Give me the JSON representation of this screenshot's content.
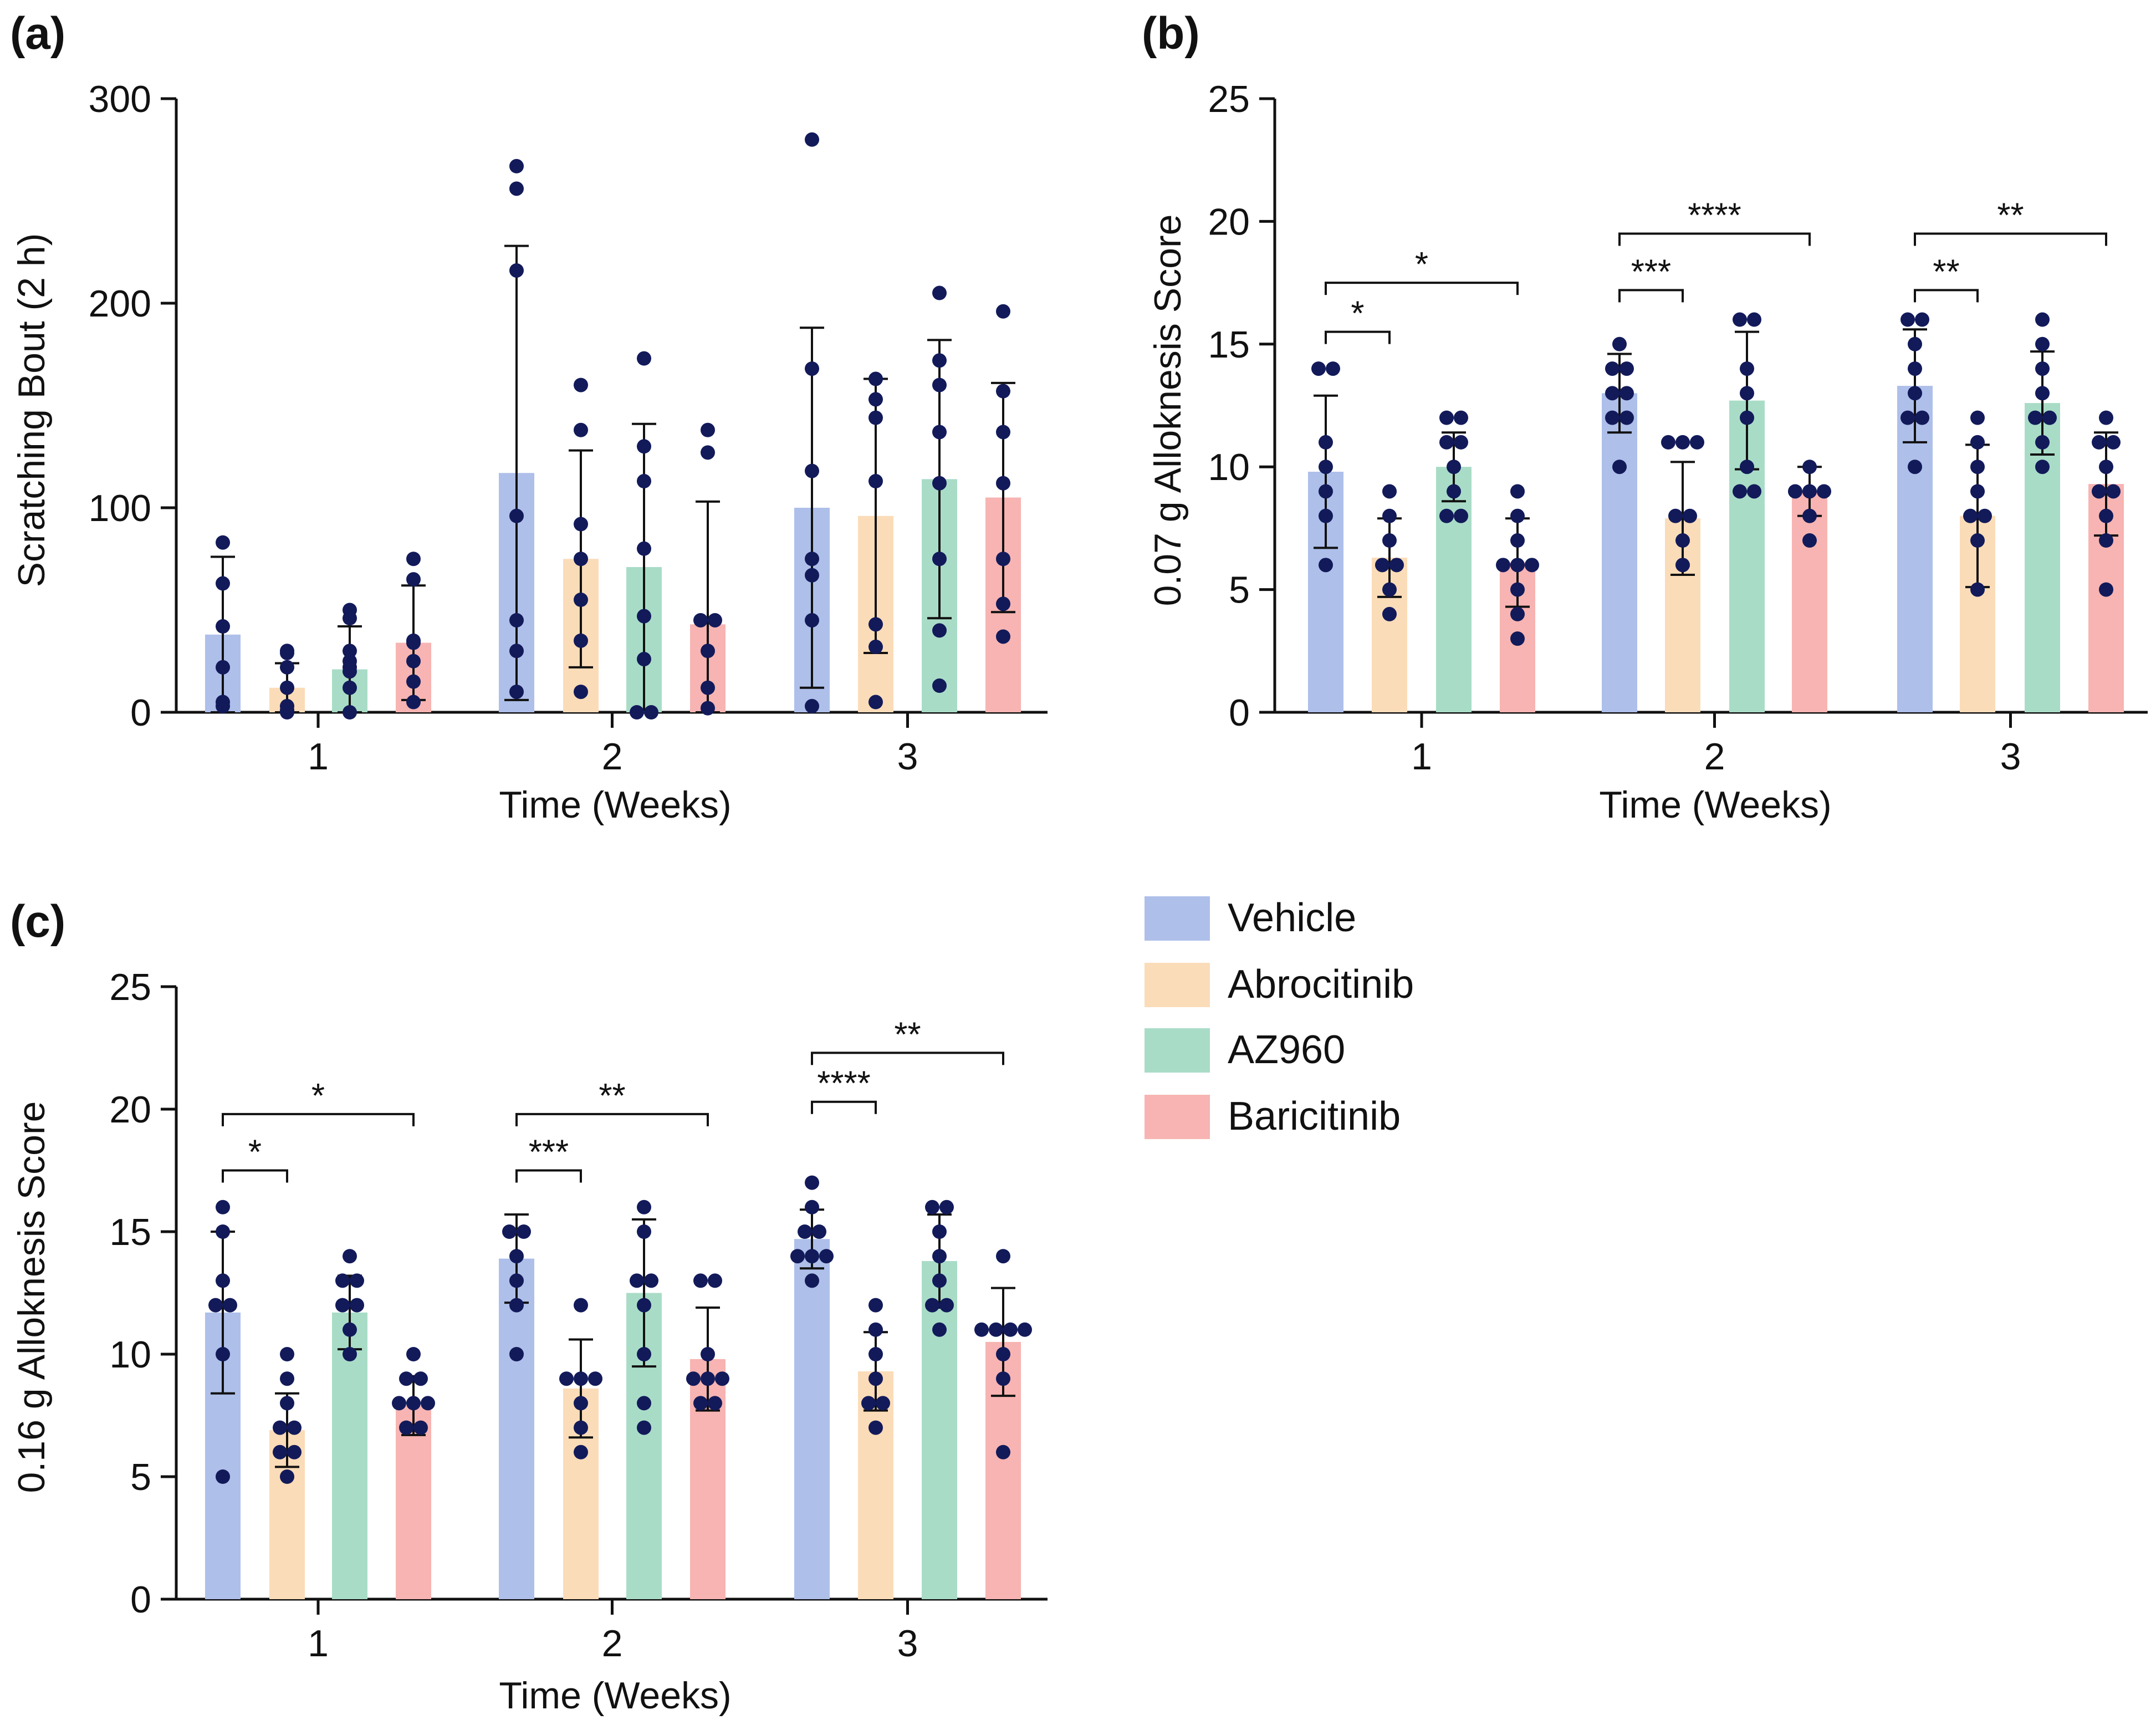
{
  "colors": {
    "vehicle": "#aebfea",
    "abrocitinib": "#fbdcb8",
    "az960": "#a9dcc7",
    "baricitinib": "#f7b4b2",
    "dot": "#121a5a",
    "axis": "#111111"
  },
  "legend": {
    "items": [
      {
        "label": "Vehicle",
        "color": "#aebfea"
      },
      {
        "label": "Abrocitinib",
        "color": "#fbdcb8"
      },
      {
        "label": "AZ960",
        "color": "#a9dcc7"
      },
      {
        "label": "Baricitinib",
        "color": "#f7b4b2"
      }
    ]
  },
  "chart_data": [
    {
      "panel_label": "(a)",
      "type": "bar",
      "title": "",
      "xlabel": "Time (Weeks)",
      "ylabel": "Scratching Bout (2 h)",
      "categories": [
        "1",
        "2",
        "3"
      ],
      "ylim": [
        0,
        300
      ],
      "yticks": [
        "0",
        "100",
        "200",
        "300"
      ],
      "series": [
        {
          "name": "Vehicle",
          "values": [
            38,
            117,
            100
          ],
          "sd": [
            38,
            111,
            88
          ],
          "points": [
            [
              83,
              63,
              42,
              22,
              5,
              3
            ],
            [
              267,
              256,
              216,
              96,
              45,
              30,
              10
            ],
            [
              280,
              168,
              118,
              75,
              67,
              45,
              3
            ]
          ]
        },
        {
          "name": "Abrocitinib",
          "values": [
            12,
            75,
            96
          ],
          "sd": [
            12,
            53,
            67
          ],
          "points": [
            [
              30,
              29,
              22,
              12,
              3,
              1,
              0
            ],
            [
              160,
              138,
              92,
              75,
              55,
              35,
              10
            ],
            [
              163,
              153,
              144,
              113,
              43,
              32,
              5
            ]
          ]
        },
        {
          "name": "AZ960",
          "values": [
            21,
            71,
            114
          ],
          "sd": [
            21,
            70,
            68
          ],
          "points": [
            [
              50,
              46,
              30,
              25,
              22,
              20,
              12,
              0
            ],
            [
              173,
              130,
              113,
              80,
              47,
              26,
              0,
              0
            ],
            [
              205,
              172,
              160,
              137,
              112,
              75,
              40,
              13
            ]
          ]
        },
        {
          "name": "Baricitinib",
          "values": [
            34,
            43,
            105
          ],
          "sd": [
            28,
            60,
            56
          ],
          "points": [
            [
              75,
              65,
              35,
              34,
              25,
              15,
              5
            ],
            [
              138,
              127,
              45,
              45,
              30,
              12,
              2
            ],
            [
              196,
              157,
              137,
              112,
              75,
              53,
              37
            ]
          ]
        }
      ],
      "annotations": []
    },
    {
      "panel_label": "(b)",
      "type": "bar",
      "title": "",
      "xlabel": "Time (Weeks)",
      "ylabel": "0.07 g Alloknesis Score",
      "categories": [
        "1",
        "2",
        "3"
      ],
      "ylim": [
        0,
        25
      ],
      "yticks": [
        "0",
        "5",
        "10",
        "15",
        "20",
        "25"
      ],
      "series": [
        {
          "name": "Vehicle",
          "values": [
            9.8,
            13,
            13.3
          ],
          "sd": [
            3.1,
            1.6,
            2.3
          ],
          "points": [
            [
              14,
              14,
              11,
              10,
              9,
              8,
              6
            ],
            [
              15,
              14,
              14,
              13,
              13,
              12,
              12,
              10
            ],
            [
              16,
              16,
              15,
              14,
              13,
              12,
              12,
              10
            ]
          ]
        },
        {
          "name": "Abrocitinib",
          "values": [
            6.3,
            7.9,
            8
          ],
          "sd": [
            1.6,
            2.3,
            2.9
          ],
          "points": [
            [
              9,
              8,
              7,
              6,
              6,
              5,
              4
            ],
            [
              11,
              11,
              11,
              8,
              8,
              7,
              6
            ],
            [
              12,
              11,
              10,
              9,
              8,
              8,
              7,
              5
            ]
          ]
        },
        {
          "name": "AZ960",
          "values": [
            10,
            12.7,
            12.6
          ],
          "sd": [
            1.4,
            2.8,
            2.1
          ],
          "points": [
            [
              12,
              12,
              11,
              11,
              10,
              9,
              8,
              8
            ],
            [
              16,
              16,
              14,
              13,
              12,
              10,
              9,
              9
            ],
            [
              16,
              15,
              14,
              13,
              12,
              12,
              11,
              10
            ]
          ]
        },
        {
          "name": "Baricitinib",
          "values": [
            6.1,
            9,
            9.3
          ],
          "sd": [
            1.8,
            1.0,
            2.1
          ],
          "points": [
            [
              9,
              8,
              7,
              6,
              6,
              6,
              5,
              4,
              3
            ],
            [
              10,
              9,
              9,
              9,
              8,
              7
            ],
            [
              12,
              11,
              11,
              10,
              9,
              9,
              8,
              7,
              5
            ]
          ]
        }
      ],
      "annotations": [
        {
          "week": "1",
          "from": "Vehicle",
          "to": "Abrocitinib",
          "level": 15.5,
          "text": "*"
        },
        {
          "week": "1",
          "from": "Vehicle",
          "to": "Baricitinib",
          "level": 17.5,
          "text": "*"
        },
        {
          "week": "2",
          "from": "Vehicle",
          "to": "Abrocitinib",
          "level": 17.2,
          "text": "***"
        },
        {
          "week": "2",
          "from": "Vehicle",
          "to": "Baricitinib",
          "level": 19.5,
          "text": "****"
        },
        {
          "week": "3",
          "from": "Vehicle",
          "to": "Abrocitinib",
          "level": 17.2,
          "text": "**"
        },
        {
          "week": "3",
          "from": "Vehicle",
          "to": "Baricitinib",
          "level": 19.5,
          "text": "**"
        }
      ]
    },
    {
      "panel_label": "(c)",
      "type": "bar",
      "title": "",
      "xlabel": "Time (Weeks)",
      "ylabel": "0.16 g Alloknesis Score",
      "categories": [
        "1",
        "2",
        "3"
      ],
      "ylim": [
        0,
        25
      ],
      "yticks": [
        "0",
        "5",
        "10",
        "15",
        "20",
        "25"
      ],
      "series": [
        {
          "name": "Vehicle",
          "values": [
            11.7,
            13.9,
            14.7
          ],
          "sd": [
            3.3,
            1.8,
            1.2
          ],
          "points": [
            [
              16,
              15,
              13,
              12,
              12,
              10,
              5
            ],
            [
              15,
              15,
              14,
              13,
              12,
              10
            ],
            [
              17,
              16,
              15,
              15,
              14,
              14,
              14,
              13
            ]
          ]
        },
        {
          "name": "Abrocitinib",
          "values": [
            6.9,
            8.6,
            9.3
          ],
          "sd": [
            1.5,
            2.0,
            1.6
          ],
          "points": [
            [
              10,
              9,
              8,
              7,
              7,
              6,
              6,
              5
            ],
            [
              12,
              9,
              9,
              9,
              8,
              7,
              6
            ],
            [
              12,
              11,
              10,
              9,
              8,
              8,
              7
            ]
          ]
        },
        {
          "name": "AZ960",
          "values": [
            11.7,
            12.5,
            13.8
          ],
          "sd": [
            1.5,
            3.0,
            1.9
          ],
          "points": [
            [
              14,
              13,
              13,
              12,
              12,
              11,
              10
            ],
            [
              16,
              15,
              13,
              13,
              12,
              10,
              8,
              7
            ],
            [
              16,
              16,
              15,
              14,
              13,
              12,
              12,
              11
            ]
          ]
        },
        {
          "name": "Baricitinib",
          "values": [
            7.9,
            9.8,
            10.5
          ],
          "sd": [
            1.2,
            2.1,
            2.2
          ],
          "points": [
            [
              10,
              9,
              9,
              8,
              8,
              8,
              7,
              7
            ],
            [
              13,
              13,
              10,
              9,
              9,
              9,
              8,
              8
            ],
            [
              14,
              11,
              11,
              11,
              11,
              10,
              9,
              6
            ]
          ]
        }
      ],
      "annotations": [
        {
          "week": "1",
          "from": "Vehicle",
          "to": "Abrocitinib",
          "level": 17.5,
          "text": "*"
        },
        {
          "week": "1",
          "from": "Vehicle",
          "to": "Baricitinib",
          "level": 19.8,
          "text": "*"
        },
        {
          "week": "2",
          "from": "Vehicle",
          "to": "Abrocitinib",
          "level": 17.5,
          "text": "***"
        },
        {
          "week": "2",
          "from": "Vehicle",
          "to": "Baricitinib",
          "level": 19.8,
          "text": "**"
        },
        {
          "week": "3",
          "from": "Vehicle",
          "to": "Abrocitinib",
          "level": 20.3,
          "text": "****"
        },
        {
          "week": "3",
          "from": "Vehicle",
          "to": "Baricitinib",
          "level": 22.3,
          "text": "**"
        }
      ]
    }
  ]
}
